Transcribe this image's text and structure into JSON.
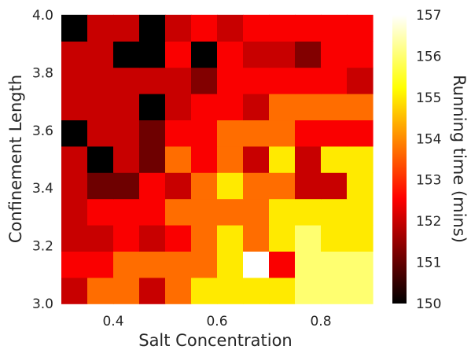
{
  "chart_data": {
    "type": "heatmap",
    "xlabel": "Salt Concentration",
    "ylabel": "Confinement Length",
    "colorbar_label": "Running time (mins)",
    "colormap": "hot",
    "x_range": [
      0.3,
      0.9
    ],
    "y_range": [
      3.0,
      4.0
    ],
    "x_ticks": [
      0.4,
      0.6,
      0.8
    ],
    "x_tick_labels": [
      "0.4",
      "0.6",
      "0.8"
    ],
    "y_ticks": [
      3.0,
      3.2,
      3.4,
      3.6,
      3.8,
      4.0
    ],
    "y_tick_labels": [
      "3.0",
      "3.2",
      "3.4",
      "3.6",
      "3.8",
      "4.0"
    ],
    "color_range": [
      150,
      157
    ],
    "colorbar_ticks": [
      150,
      151,
      152,
      153,
      154,
      155,
      156,
      157
    ],
    "colorbar_tick_labels": [
      "150",
      "151",
      "152",
      "153",
      "154",
      "155",
      "156",
      "157"
    ],
    "x_centers": [
      0.325,
      0.375,
      0.425,
      0.475,
      0.525,
      0.575,
      0.625,
      0.675,
      0.725,
      0.775,
      0.825,
      0.875
    ],
    "y_centers": [
      3.045,
      3.136,
      3.227,
      3.318,
      3.409,
      3.5,
      3.591,
      3.682,
      3.773,
      3.864,
      3.955
    ],
    "values": [
      [
        152.0,
        153.7,
        153.7,
        152.0,
        153.7,
        155.0,
        155.0,
        155.0,
        155.0,
        156.0,
        156.0,
        156.0
      ],
      [
        152.5,
        152.5,
        153.7,
        153.7,
        153.7,
        153.7,
        155.0,
        157.0,
        152.5,
        156.0,
        156.0,
        156.0
      ],
      [
        152.0,
        152.0,
        152.5,
        152.0,
        152.5,
        153.7,
        155.0,
        153.7,
        155.0,
        156.0,
        155.0,
        155.0
      ],
      [
        152.0,
        152.5,
        152.5,
        152.5,
        153.7,
        153.7,
        153.7,
        153.7,
        155.0,
        155.0,
        155.0,
        155.0
      ],
      [
        152.0,
        151.1,
        151.1,
        152.5,
        152.0,
        153.7,
        155.0,
        153.7,
        153.7,
        152.0,
        152.0,
        155.0
      ],
      [
        152.0,
        150.0,
        152.0,
        151.1,
        153.7,
        152.5,
        153.7,
        152.0,
        155.0,
        152.0,
        155.0,
        155.0
      ],
      [
        150.0,
        152.0,
        152.0,
        151.1,
        152.5,
        152.5,
        153.7,
        153.7,
        153.7,
        152.5,
        152.5,
        152.5
      ],
      [
        152.0,
        152.0,
        152.0,
        150.0,
        152.0,
        152.5,
        152.5,
        152.0,
        153.7,
        153.7,
        153.7,
        153.7
      ],
      [
        152.0,
        152.0,
        152.0,
        152.0,
        152.0,
        151.3,
        152.5,
        152.5,
        152.5,
        152.5,
        152.5,
        152.0
      ],
      [
        152.0,
        152.0,
        150.0,
        150.0,
        152.5,
        150.0,
        152.5,
        152.0,
        152.0,
        151.3,
        152.5,
        152.5
      ],
      [
        150.0,
        152.0,
        152.0,
        150.0,
        152.0,
        152.5,
        152.0,
        152.5,
        152.5,
        152.5,
        152.5,
        152.5
      ]
    ],
    "grid": false
  }
}
